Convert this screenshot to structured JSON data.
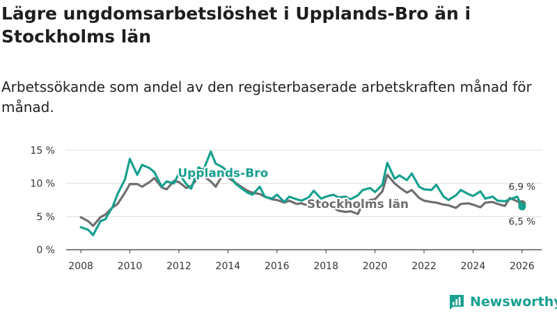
{
  "title": "Lägre ungdomsarbetslöshet i Upplands-Bro än i Stockholms län",
  "subtitle": "Arbetssökande som andel av den registerbaserade arbetskraften månad för månad.",
  "brand": {
    "name": "Newsworthy",
    "color": "#17a08f"
  },
  "chart_data": {
    "type": "line",
    "title": "Lägre ungdomsarbetslöshet i Upplands-Bro än i Stockholms län",
    "xlabel": "",
    "ylabel": "",
    "xlim": [
      2007.4,
      2026.8
    ],
    "ylim": [
      0,
      15
    ],
    "grid": true,
    "y_ticks": [
      0,
      5,
      10,
      15
    ],
    "y_tick_labels": [
      "0 %",
      "5 %",
      "10 %",
      "15 %"
    ],
    "x_ticks": [
      2008,
      2010,
      2012,
      2014,
      2016,
      2018,
      2020,
      2022,
      2024,
      2026
    ],
    "x_tick_labels": [
      "2008",
      "2010",
      "2012",
      "2014",
      "2016",
      "2018",
      "2020",
      "2022",
      "2024",
      "2026"
    ],
    "series": [
      {
        "name": "Stockholms län",
        "color": "#6e6e6e",
        "end_label": "6,9 %",
        "x": [
          2008.0,
          2008.3,
          2008.5,
          2008.8,
          2009.0,
          2009.3,
          2009.5,
          2009.8,
          2010.0,
          2010.3,
          2010.5,
          2010.8,
          2011.0,
          2011.3,
          2011.5,
          2011.8,
          2012.0,
          2012.3,
          2012.5,
          2012.8,
          2013.0,
          2013.3,
          2013.5,
          2013.8,
          2014.0,
          2014.3,
          2014.5,
          2014.8,
          2015.0,
          2015.3,
          2015.5,
          2015.8,
          2016.0,
          2016.3,
          2016.5,
          2016.8,
          2017.0,
          2017.3,
          2017.5,
          2017.8,
          2018.0,
          2018.3,
          2018.5,
          2018.8,
          2019.0,
          2019.3,
          2019.5,
          2019.8,
          2020.0,
          2020.3,
          2020.5,
          2020.8,
          2021.0,
          2021.3,
          2021.5,
          2021.8,
          2022.0,
          2022.3,
          2022.5,
          2022.8,
          2023.0,
          2023.3,
          2023.5,
          2023.8,
          2024.0,
          2024.3,
          2024.5,
          2024.8,
          2025.0,
          2025.3,
          2025.5,
          2025.8,
          2026.0
        ],
        "values": [
          4.9,
          4.3,
          3.6,
          4.9,
          5.3,
          6.4,
          6.9,
          8.6,
          9.9,
          9.9,
          9.5,
          10.2,
          10.8,
          9.4,
          9.1,
          10.4,
          10.2,
          9.3,
          9.6,
          10.9,
          11.1,
          10.3,
          9.5,
          11.4,
          10.9,
          10.1,
          9.6,
          8.9,
          8.6,
          8.4,
          8.0,
          7.6,
          7.5,
          7.1,
          7.4,
          6.9,
          7.0,
          6.6,
          6.5,
          6.3,
          6.6,
          6.4,
          5.9,
          5.7,
          5.8,
          5.4,
          6.9,
          7.5,
          7.6,
          8.8,
          11.3,
          10.0,
          9.4,
          8.6,
          9.0,
          7.8,
          7.4,
          7.2,
          7.1,
          6.8,
          6.7,
          6.3,
          6.9,
          7.0,
          6.8,
          6.4,
          7.1,
          7.2,
          6.9,
          6.6,
          7.8,
          7.3,
          6.9
        ]
      },
      {
        "name": "Upplands-Bro",
        "color": "#17a08f",
        "end_label": "6,5 %",
        "x": [
          2008.0,
          2008.3,
          2008.5,
          2008.8,
          2009.0,
          2009.3,
          2009.5,
          2009.8,
          2010.0,
          2010.3,
          2010.5,
          2010.8,
          2011.0,
          2011.3,
          2011.5,
          2011.8,
          2012.0,
          2012.3,
          2012.5,
          2012.8,
          2013.0,
          2013.3,
          2013.5,
          2013.8,
          2014.0,
          2014.3,
          2014.5,
          2014.8,
          2015.0,
          2015.3,
          2015.5,
          2015.8,
          2016.0,
          2016.3,
          2016.5,
          2016.8,
          2017.0,
          2017.3,
          2017.5,
          2017.8,
          2018.0,
          2018.3,
          2018.5,
          2018.8,
          2019.0,
          2019.3,
          2019.5,
          2019.8,
          2020.0,
          2020.3,
          2020.5,
          2020.8,
          2021.0,
          2021.3,
          2021.5,
          2021.8,
          2022.0,
          2022.3,
          2022.5,
          2022.8,
          2023.0,
          2023.3,
          2023.5,
          2023.8,
          2024.0,
          2024.3,
          2024.5,
          2024.8,
          2025.0,
          2025.3,
          2025.5,
          2025.8,
          2026.0
        ],
        "values": [
          3.4,
          3.0,
          2.2,
          4.3,
          4.6,
          6.5,
          8.4,
          10.6,
          13.7,
          11.3,
          12.8,
          12.3,
          11.7,
          9.5,
          10.3,
          10.0,
          11.5,
          9.9,
          9.2,
          12.4,
          12.0,
          14.8,
          13.0,
          12.4,
          11.7,
          10.0,
          9.4,
          8.6,
          8.3,
          9.5,
          8.0,
          7.7,
          8.3,
          7.2,
          8.0,
          7.6,
          7.4,
          7.9,
          8.9,
          7.7,
          8.0,
          8.3,
          7.9,
          8.0,
          7.6,
          8.2,
          9.0,
          9.3,
          8.7,
          9.8,
          13.1,
          10.7,
          11.2,
          10.5,
          11.5,
          9.5,
          9.1,
          9.0,
          9.8,
          8.0,
          7.5,
          8.2,
          9.0,
          8.4,
          8.1,
          8.8,
          7.7,
          8.0,
          7.4,
          7.3,
          7.6,
          8.0,
          6.5
        ]
      }
    ],
    "annotations": [
      {
        "text": "Upplands-Bro",
        "series": "Upplands-Bro",
        "at": 2013.8,
        "level": 11.6
      },
      {
        "text": "Stockholms län",
        "series": "Stockholms län",
        "at": 2019.3,
        "level": 6.9
      }
    ]
  }
}
